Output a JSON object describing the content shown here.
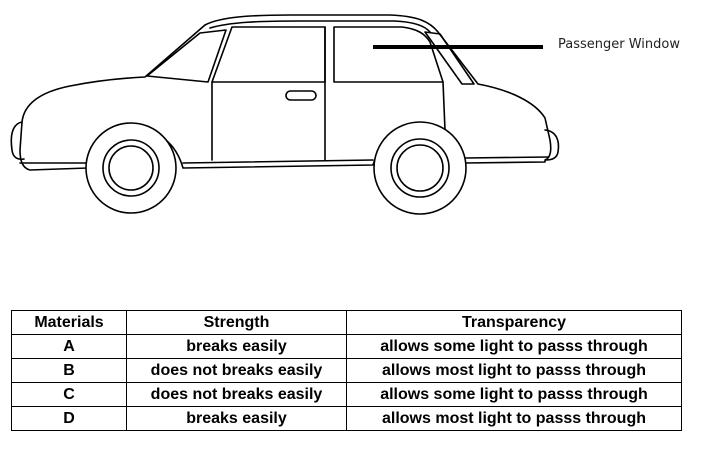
{
  "callout": {
    "label": "Passenger Window"
  },
  "table": {
    "headers": [
      "Materials",
      "Strength",
      "Transparency"
    ],
    "rows": [
      {
        "material": "A",
        "strength": "breaks easily",
        "transparency": "allows some light to passs through"
      },
      {
        "material": "B",
        "strength": "does not breaks easily",
        "transparency": "allows most light to passs through"
      },
      {
        "material": "C",
        "strength": "does not breaks easily",
        "transparency": "allows some light to passs through"
      },
      {
        "material": "D",
        "strength": "breaks easily",
        "transparency": "allows most light to passs through"
      }
    ]
  },
  "colors": {
    "line": "#000000",
    "background": "#ffffff"
  }
}
